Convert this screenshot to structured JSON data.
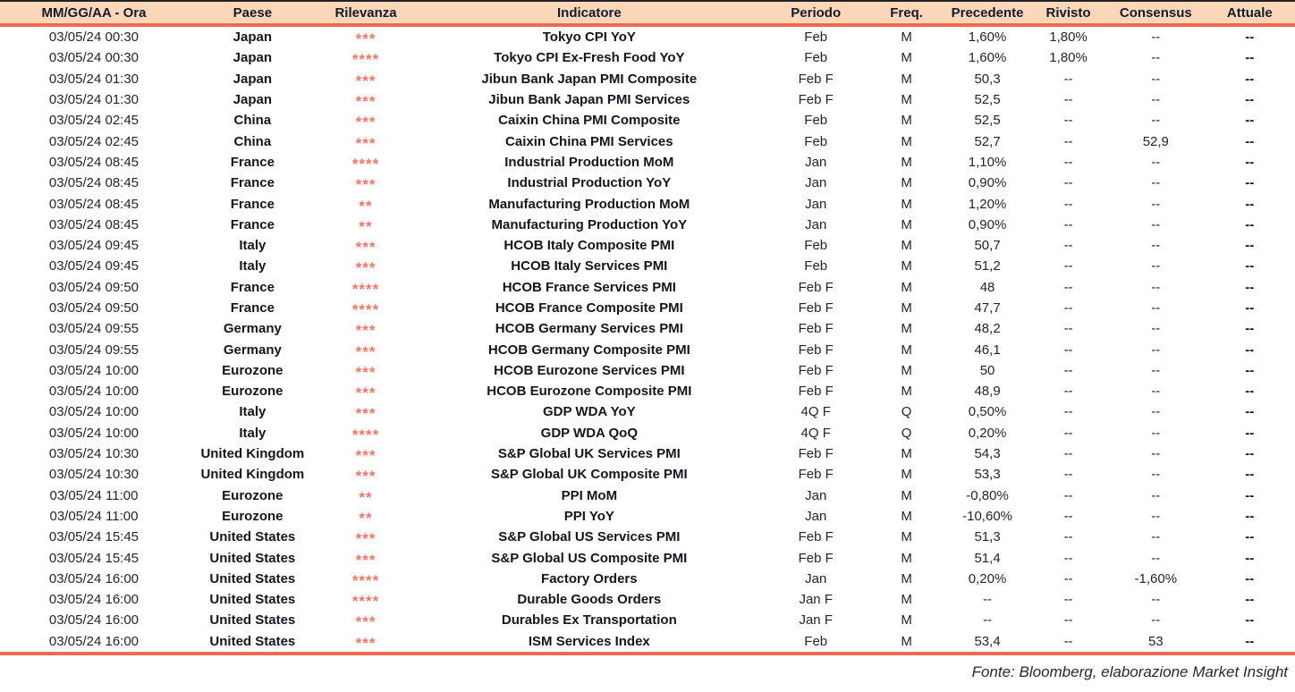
{
  "table": {
    "columns": [
      "MM/GG/AA - Ora",
      "Paese",
      "Rilevanza",
      "Indicatore",
      "Periodo",
      "Freq.",
      "Precedente",
      "Rivisto",
      "Consensus",
      "Attuale"
    ],
    "rows": [
      [
        "03/05/24 00:30",
        "Japan",
        3,
        "Tokyo CPI YoY",
        "Feb",
        "M",
        "1,60%",
        "1,80%",
        "--",
        "--"
      ],
      [
        "03/05/24 00:30",
        "Japan",
        4,
        "Tokyo CPI Ex-Fresh Food YoY",
        "Feb",
        "M",
        "1,60%",
        "1,80%",
        "--",
        "--"
      ],
      [
        "03/05/24 01:30",
        "Japan",
        3,
        "Jibun Bank Japan PMI Composite",
        "Feb F",
        "M",
        "50,3",
        "--",
        "--",
        "--"
      ],
      [
        "03/05/24 01:30",
        "Japan",
        3,
        "Jibun Bank Japan PMI Services",
        "Feb F",
        "M",
        "52,5",
        "--",
        "--",
        "--"
      ],
      [
        "03/05/24 02:45",
        "China",
        3,
        "Caixin China PMI Composite",
        "Feb",
        "M",
        "52,5",
        "--",
        "--",
        "--"
      ],
      [
        "03/05/24 02:45",
        "China",
        3,
        "Caixin China PMI Services",
        "Feb",
        "M",
        "52,7",
        "--",
        "52,9",
        "--"
      ],
      [
        "03/05/24 08:45",
        "France",
        4,
        "Industrial Production MoM",
        "Jan",
        "M",
        "1,10%",
        "--",
        "--",
        "--"
      ],
      [
        "03/05/24 08:45",
        "France",
        3,
        "Industrial Production YoY",
        "Jan",
        "M",
        "0,90%",
        "--",
        "--",
        "--"
      ],
      [
        "03/05/24 08:45",
        "France",
        2,
        "Manufacturing Production MoM",
        "Jan",
        "M",
        "1,20%",
        "--",
        "--",
        "--"
      ],
      [
        "03/05/24 08:45",
        "France",
        2,
        "Manufacturing Production YoY",
        "Jan",
        "M",
        "0,90%",
        "--",
        "--",
        "--"
      ],
      [
        "03/05/24 09:45",
        "Italy",
        3,
        "HCOB Italy Composite PMI",
        "Feb",
        "M",
        "50,7",
        "--",
        "--",
        "--"
      ],
      [
        "03/05/24 09:45",
        "Italy",
        3,
        "HCOB Italy Services PMI",
        "Feb",
        "M",
        "51,2",
        "--",
        "--",
        "--"
      ],
      [
        "03/05/24 09:50",
        "France",
        4,
        "HCOB France Services PMI",
        "Feb F",
        "M",
        "48",
        "--",
        "--",
        "--"
      ],
      [
        "03/05/24 09:50",
        "France",
        4,
        "HCOB France Composite PMI",
        "Feb F",
        "M",
        "47,7",
        "--",
        "--",
        "--"
      ],
      [
        "03/05/24 09:55",
        "Germany",
        3,
        "HCOB Germany Services PMI",
        "Feb F",
        "M",
        "48,2",
        "--",
        "--",
        "--"
      ],
      [
        "03/05/24 09:55",
        "Germany",
        3,
        "HCOB Germany Composite PMI",
        "Feb F",
        "M",
        "46,1",
        "--",
        "--",
        "--"
      ],
      [
        "03/05/24 10:00",
        "Eurozone",
        3,
        "HCOB Eurozone Services PMI",
        "Feb F",
        "M",
        "50",
        "--",
        "--",
        "--"
      ],
      [
        "03/05/24 10:00",
        "Eurozone",
        3,
        "HCOB Eurozone Composite PMI",
        "Feb F",
        "M",
        "48,9",
        "--",
        "--",
        "--"
      ],
      [
        "03/05/24 10:00",
        "Italy",
        3,
        "GDP WDA YoY",
        "4Q F",
        "Q",
        "0,50%",
        "--",
        "--",
        "--"
      ],
      [
        "03/05/24 10:00",
        "Italy",
        4,
        "GDP WDA QoQ",
        "4Q F",
        "Q",
        "0,20%",
        "--",
        "--",
        "--"
      ],
      [
        "03/05/24 10:30",
        "United Kingdom",
        3,
        "S&P Global UK Services PMI",
        "Feb F",
        "M",
        "54,3",
        "--",
        "--",
        "--"
      ],
      [
        "03/05/24 10:30",
        "United Kingdom",
        3,
        "S&P Global UK Composite PMI",
        "Feb F",
        "M",
        "53,3",
        "--",
        "--",
        "--"
      ],
      [
        "03/05/24 11:00",
        "Eurozone",
        2,
        "PPI MoM",
        "Jan",
        "M",
        "-0,80%",
        "--",
        "--",
        "--"
      ],
      [
        "03/05/24 11:00",
        "Eurozone",
        2,
        "PPI YoY",
        "Jan",
        "M",
        "-10,60%",
        "--",
        "--",
        "--"
      ],
      [
        "03/05/24 15:45",
        "United States",
        3,
        "S&P Global US Services PMI",
        "Feb F",
        "M",
        "51,3",
        "--",
        "--",
        "--"
      ],
      [
        "03/05/24 15:45",
        "United States",
        3,
        "S&P Global US Composite PMI",
        "Feb F",
        "M",
        "51,4",
        "--",
        "--",
        "--"
      ],
      [
        "03/05/24 16:00",
        "United States",
        4,
        "Factory Orders",
        "Jan",
        "M",
        "0,20%",
        "--",
        "-1,60%",
        "--"
      ],
      [
        "03/05/24 16:00",
        "United States",
        4,
        "Durable Goods Orders",
        "Jan F",
        "M",
        "--",
        "--",
        "--",
        "--"
      ],
      [
        "03/05/24 16:00",
        "United States",
        3,
        "Durables Ex Transportation",
        "Jan F",
        "M",
        "--",
        "--",
        "--",
        "--"
      ],
      [
        "03/05/24 16:00",
        "United States",
        3,
        "ISM Services Index",
        "Feb",
        "M",
        "53,4",
        "--",
        "53",
        "--"
      ]
    ]
  },
  "icons": {
    "star_glyph": "*"
  },
  "colors": {
    "header_background": "#fad7b8",
    "accent_line": "#ef684f",
    "stars": "#f4766a",
    "text": "#1c1d26",
    "top_rule": "#222222"
  },
  "footer": {
    "source_label": "Fonte: Bloomberg, elaborazione Market Insight"
  }
}
